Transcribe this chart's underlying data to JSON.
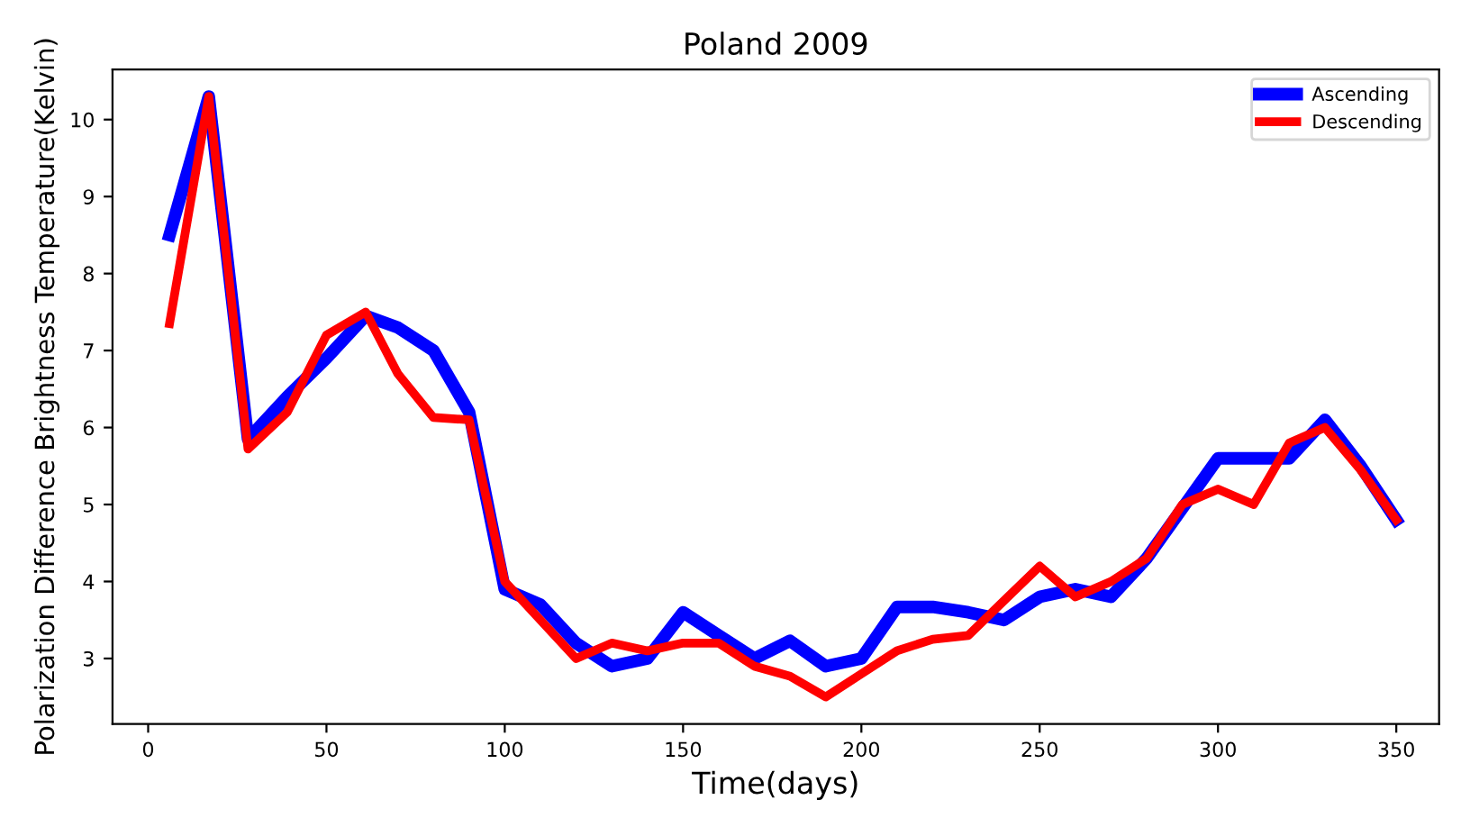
{
  "chart_data": {
    "type": "line",
    "title": "Poland 2009",
    "xlabel": "Time(days)",
    "ylabel": "Polarization Difference Brightness Temperature(Kelvin)",
    "x": [
      6,
      17,
      28,
      39,
      50,
      61,
      70,
      80,
      90,
      100,
      110,
      120,
      130,
      140,
      150,
      160,
      170,
      180,
      190,
      200,
      210,
      220,
      230,
      240,
      250,
      260,
      270,
      280,
      290,
      300,
      310,
      320,
      330,
      340,
      350
    ],
    "series": [
      {
        "name": "Ascending",
        "color": "#0000ff",
        "values": [
          8.5,
          10.3,
          5.85,
          6.4,
          6.9,
          7.45,
          7.3,
          7.0,
          6.2,
          3.9,
          3.7,
          3.2,
          2.9,
          3.0,
          3.6,
          3.3,
          3.0,
          3.23,
          2.9,
          3.0,
          3.67,
          3.67,
          3.6,
          3.5,
          3.8,
          3.9,
          3.8,
          4.3,
          4.95,
          5.6,
          5.6,
          5.6,
          6.1,
          5.5,
          4.8
        ]
      },
      {
        "name": "Descending",
        "color": "#ff0000",
        "values": [
          7.35,
          10.3,
          5.72,
          6.2,
          7.2,
          7.5,
          6.7,
          6.13,
          6.1,
          4.0,
          3.5,
          3.0,
          3.2,
          3.1,
          3.2,
          3.2,
          2.9,
          2.77,
          2.5,
          2.8,
          3.1,
          3.25,
          3.3,
          3.75,
          4.2,
          3.8,
          4.0,
          4.3,
          5.0,
          5.2,
          5.0,
          5.8,
          6.0,
          5.45,
          4.8
        ]
      }
    ],
    "xlim": [
      -10,
      362
    ],
    "ylim": [
      2.15,
      10.65
    ],
    "xticks": [
      0,
      50,
      100,
      150,
      200,
      250,
      300,
      350
    ],
    "yticks": [
      3,
      4,
      5,
      6,
      7,
      8,
      9,
      10
    ],
    "grid": false,
    "legend": "top right",
    "marker": "none",
    "line_style": "solid"
  }
}
